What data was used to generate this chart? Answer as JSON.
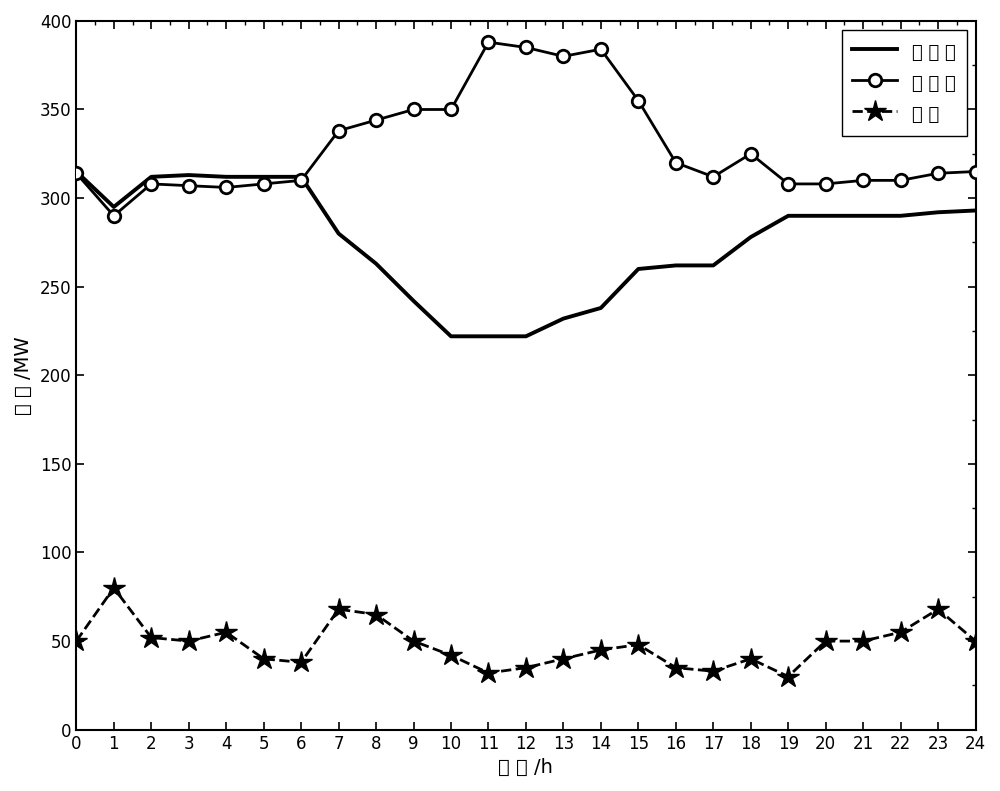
{
  "hours": [
    0,
    1,
    2,
    3,
    4,
    5,
    6,
    7,
    8,
    9,
    10,
    11,
    12,
    13,
    14,
    15,
    16,
    17,
    18,
    19,
    20,
    21,
    22,
    23,
    24
  ],
  "heat_load": [
    315,
    295,
    312,
    313,
    312,
    312,
    312,
    280,
    263,
    242,
    222,
    222,
    222,
    232,
    238,
    260,
    262,
    262,
    278,
    290,
    290,
    290,
    290,
    292,
    293
  ],
  "elec_load": [
    314,
    290,
    308,
    307,
    306,
    308,
    310,
    338,
    344,
    350,
    350,
    388,
    385,
    380,
    384,
    355,
    320,
    312,
    325,
    308,
    308,
    310,
    310,
    314,
    315
  ],
  "wind_power": [
    50,
    80,
    52,
    50,
    55,
    40,
    38,
    68,
    65,
    50,
    42,
    32,
    35,
    40,
    45,
    48,
    35,
    33,
    40,
    30,
    50,
    50,
    55,
    68,
    50
  ],
  "ylabel": "功 率 /MW",
  "xlabel": "时 间 /h",
  "legend_heat": "热 负 荷",
  "legend_elec": "电 负 荷",
  "legend_wind": "风 电",
  "ylim": [
    0,
    400
  ],
  "xlim": [
    0,
    24
  ],
  "xticks": [
    0,
    1,
    2,
    3,
    4,
    5,
    6,
    7,
    8,
    9,
    10,
    11,
    12,
    13,
    14,
    15,
    16,
    17,
    18,
    19,
    20,
    21,
    22,
    23,
    24
  ],
  "yticks": [
    0,
    50,
    100,
    150,
    200,
    250,
    300,
    350,
    400
  ],
  "background_color": "#ffffff",
  "figwidth": 10.0,
  "figheight": 7.91,
  "dpi": 100,
  "axis_fontsize": 14,
  "tick_fontsize": 12,
  "legend_fontsize": 13,
  "heat_linewidth": 2.8,
  "elec_linewidth": 2.0,
  "wind_linewidth": 2.0,
  "elec_markersize": 9,
  "wind_markersize": 16
}
